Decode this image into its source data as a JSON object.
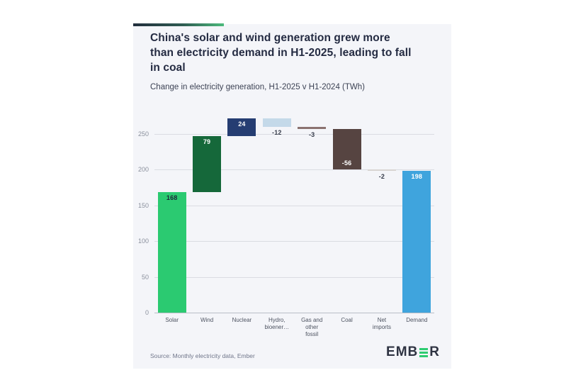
{
  "header": {
    "title": "China's solar and wind generation grew more\nthan electricity demand in H1-2025, leading to fall\nin coal",
    "subtitle": "Change in electricity generation, H1-2025 v H1-2024 (TWh)"
  },
  "chart_data": {
    "type": "bar",
    "subtype": "waterfall",
    "title": "China's solar and wind generation grew more than electricity demand in H1-2025, leading to fall in coal",
    "subtitle": "Change in electricity generation, H1-2025 v H1-2024 (TWh)",
    "unit": "TWh",
    "xlabel": "",
    "ylabel": "",
    "ylim": [
      0,
      278
    ],
    "yticks": [
      0,
      50,
      100,
      150,
      200,
      250
    ],
    "grid": true,
    "legend": "none",
    "categories": [
      "Solar",
      "Wind",
      "Nuclear",
      "Hydro,\nbioener…",
      "Gas and\nother\nfossil",
      "Coal",
      "Net\nimports",
      "Demand"
    ],
    "values": [
      168,
      79,
      24,
      -12,
      -3,
      -56,
      -2,
      198
    ],
    "items": [
      {
        "key": "solar",
        "category": "Solar",
        "value": 168,
        "display": "168",
        "is_total": false,
        "color": "#2bca71",
        "label_pos": "inside-top",
        "label_color": "#1d2539"
      },
      {
        "key": "wind",
        "category": "Wind",
        "value": 79,
        "display": "79",
        "is_total": false,
        "color": "#15683a",
        "label_pos": "inside-top",
        "label_color": "#ffffff"
      },
      {
        "key": "nuclear",
        "category": "Nuclear",
        "value": 24,
        "display": "24",
        "is_total": false,
        "color": "#253d72",
        "label_pos": "inside-top",
        "label_color": "#ffffff"
      },
      {
        "key": "hydro-bio",
        "category": "Hydro,\nbioener…",
        "value": -12,
        "display": "-12",
        "is_total": false,
        "color": "#c4d9e9",
        "label_pos": "below",
        "label_color": "#353b4a"
      },
      {
        "key": "gas-fossil",
        "category": "Gas and\nother\nfossil",
        "value": -3,
        "display": "-3",
        "is_total": false,
        "color": "#8b7270",
        "label_pos": "below",
        "label_color": "#353b4a"
      },
      {
        "key": "coal",
        "category": "Coal",
        "value": -56,
        "display": "-56",
        "is_total": false,
        "color": "#564441",
        "label_pos": "inside-bottom",
        "label_color": "#ffffff"
      },
      {
        "key": "net-imports",
        "category": "Net\nimports",
        "value": -2,
        "display": "-2",
        "is_total": false,
        "color": "#d8d4d2",
        "label_pos": "below",
        "label_color": "#353b4a"
      },
      {
        "key": "demand",
        "category": "Demand",
        "value": 198,
        "display": "198",
        "is_total": true,
        "color": "#3fa4dd",
        "label_pos": "inside-top",
        "label_color": "#ffffff"
      }
    ]
  },
  "footer": {
    "source": "Source: Monthly electricity data, Ember",
    "logo_prefix": "EMB",
    "logo_suffix": "R"
  },
  "colors": {
    "card_bg": "#f4f5f9",
    "page_bg": "#ffffff",
    "title_text": "#242b42",
    "grid": "#dadce2",
    "zero_line": "#b9bdc7",
    "tick_text": "#8b919d",
    "category_text": "#4d5361",
    "accent_gradient_start": "#222e3d",
    "accent_gradient_end": "#4cba7c",
    "logo_green": "#2ecc71",
    "logo_dark": "#2e3342"
  }
}
